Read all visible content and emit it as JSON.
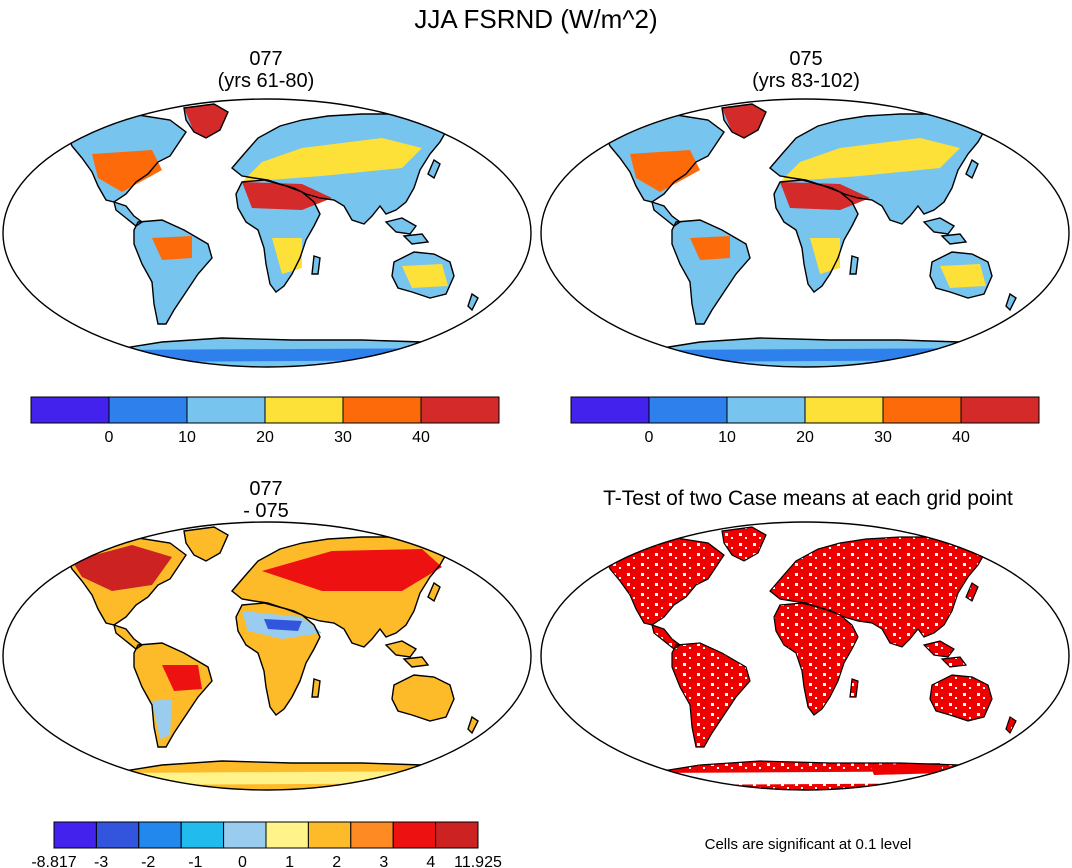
{
  "title": "JJA FSRND (W/m^2)",
  "panels": [
    {
      "id": "p1",
      "line1": "077",
      "line2": "(yrs 61-80)"
    },
    {
      "id": "p2",
      "line1": "075",
      "line2": "(yrs 83-102)"
    },
    {
      "id": "p3",
      "line1": "077",
      "line2": "- 075"
    },
    {
      "id": "p4",
      "line1": "T-Test of two Case means at each grid point",
      "note": "Cells are significant at 0.1 level"
    }
  ],
  "colorbars": {
    "mean": {
      "colors": [
        "#4422ee",
        "#2e80ec",
        "#77c4ee",
        "#fde038",
        "#fd6a0a",
        "#d42a2a"
      ],
      "labels": [
        "0",
        "10",
        "20",
        "30",
        "40"
      ]
    },
    "diff": {
      "colors": [
        "#4422ee",
        "#3355dd",
        "#2288ee",
        "#22bbee",
        "#99ccee",
        "#fff38a",
        "#fdbb2a",
        "#fd8a22",
        "#ee1111",
        "#cc2222"
      ],
      "labels": [
        "-8.817",
        "-3",
        "-2",
        "-1",
        "0",
        "1",
        "2",
        "3",
        "4",
        "11.925"
      ]
    }
  },
  "map_colors": {
    "ocean": "#ffffff",
    "coast": "#000000",
    "significant": "#ee0000"
  }
}
